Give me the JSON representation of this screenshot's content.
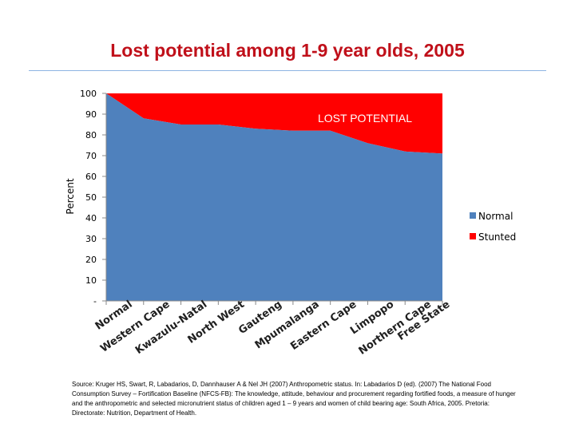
{
  "title": "Lost potential among 1-9 year olds, 2005",
  "source": "Source: Kruger HS, Swart, R, Labadarios, D, Dannhauser A & Nel JH (2007) Anthropometric status. In: Labadarios D (ed). (2007) The National Food Consumption Survey – Fortification Baseline (NFCS-FB): The knowledge, attitude, behaviour and procurement regarding fortified foods, a measure of hunger and the anthropometric and selected micronutrient status of children aged 1 – 9 years and women of child bearing age: South Africa, 2005. Pretoria: Directorate: Nutrition, Department of Health.",
  "colors": {
    "normal": "#4f81bd",
    "stunted": "#ff0000",
    "title": "#c0101a"
  },
  "chart_data": {
    "type": "area",
    "stacked": true,
    "title": "Lost potential among 1-9 year olds, 2005",
    "ylabel": "Percent",
    "xlabel": "",
    "ylim": [
      0,
      100
    ],
    "yticks": [
      0,
      10,
      20,
      30,
      40,
      50,
      60,
      70,
      80,
      90,
      100
    ],
    "ytick_labels": [
      "-",
      "10",
      "20",
      "30",
      "40",
      "50",
      "60",
      "70",
      "80",
      "90",
      "100"
    ],
    "categories": [
      "Normal",
      "Western Cape",
      "Kwazulu-Natal",
      "North West",
      "Gauteng",
      "Mpumalanga",
      "Eastern Cape",
      "Limpopo",
      "Northern Cape",
      "Free State"
    ],
    "series": [
      {
        "name": "Normal",
        "values": [
          100,
          88,
          85,
          85,
          83,
          82,
          82,
          76,
          72,
          71
        ]
      },
      {
        "name": "Stunted",
        "values": [
          0,
          12,
          15,
          15,
          17,
          18,
          18,
          24,
          28,
          29
        ]
      }
    ],
    "annotation": "LOST POTENTIAL",
    "legend_position": "right",
    "grid": false
  }
}
